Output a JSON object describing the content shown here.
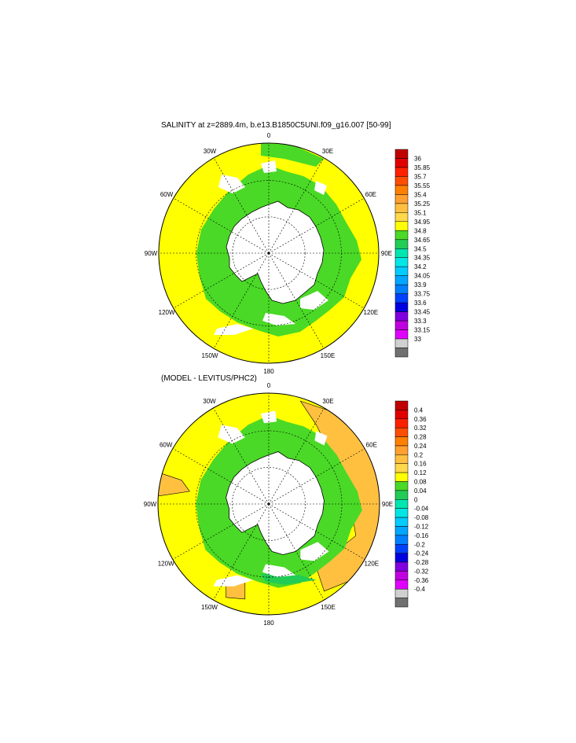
{
  "top_panel": {
    "title": "SALINITY at z=2889.4m, b.e13.B1850C5UNI.f09_g16.007 [50-99]",
    "lon_labels": [
      "0",
      "30E",
      "60E",
      "90E",
      "120E",
      "150E",
      "180",
      "150W",
      "120W",
      "90W",
      "60W",
      "30W"
    ],
    "colorbar": {
      "labels": [
        "36",
        "35.85",
        "35.7",
        "35.55",
        "35.4",
        "35.25",
        "35.1",
        "34.95",
        "34.8",
        "34.65",
        "34.5",
        "34.35",
        "34.2",
        "34.05",
        "33.9",
        "33.75",
        "33.6",
        "33.45",
        "33.3",
        "33.15",
        "33"
      ],
      "colors": [
        "#c00000",
        "#e00000",
        "#ff2000",
        "#ff4d00",
        "#ff8000",
        "#ffa030",
        "#ffc040",
        "#ffd84c",
        "#ffff00",
        "#4ad926",
        "#22cc55",
        "#00e6b0",
        "#00e6e6",
        "#00ccff",
        "#00a6ff",
        "#007fff",
        "#0040ff",
        "#0000e0",
        "#8000e0",
        "#c000e0",
        "#e000ff",
        "#d0d0d0",
        "#707070"
      ]
    }
  },
  "bottom_panel": {
    "title": "(MODEL - LEVITUS/PHC2)",
    "lon_labels": [
      "0",
      "30E",
      "60E",
      "90E",
      "120E",
      "150E",
      "180",
      "150W",
      "120W",
      "90W",
      "60W",
      "30W"
    ],
    "colorbar": {
      "labels": [
        "0.4",
        "0.36",
        "0.32",
        "0.28",
        "0.24",
        "0.2",
        "0.16",
        "0.12",
        "0.08",
        "0.04",
        "0",
        "-0.04",
        "-0.08",
        "-0.12",
        "-0.16",
        "-0.2",
        "-0.24",
        "-0.28",
        "-0.32",
        "-0.36",
        "-0.4"
      ],
      "colors": [
        "#c00000",
        "#e00000",
        "#ff2000",
        "#ff4d00",
        "#ff8000",
        "#ffa030",
        "#ffc040",
        "#ffd84c",
        "#ffff00",
        "#4ad926",
        "#22cc55",
        "#00e6b0",
        "#00e6e6",
        "#00ccff",
        "#00a6ff",
        "#007fff",
        "#0040ff",
        "#0000e0",
        "#8000e0",
        "#c000e0",
        "#e000ff",
        "#d0d0d0",
        "#707070"
      ]
    }
  },
  "colors": {
    "yellow": "#ffff00",
    "green": "#4ad926",
    "orange": "#ffc040",
    "teal": "#22cc55",
    "land": "#ffffff"
  }
}
